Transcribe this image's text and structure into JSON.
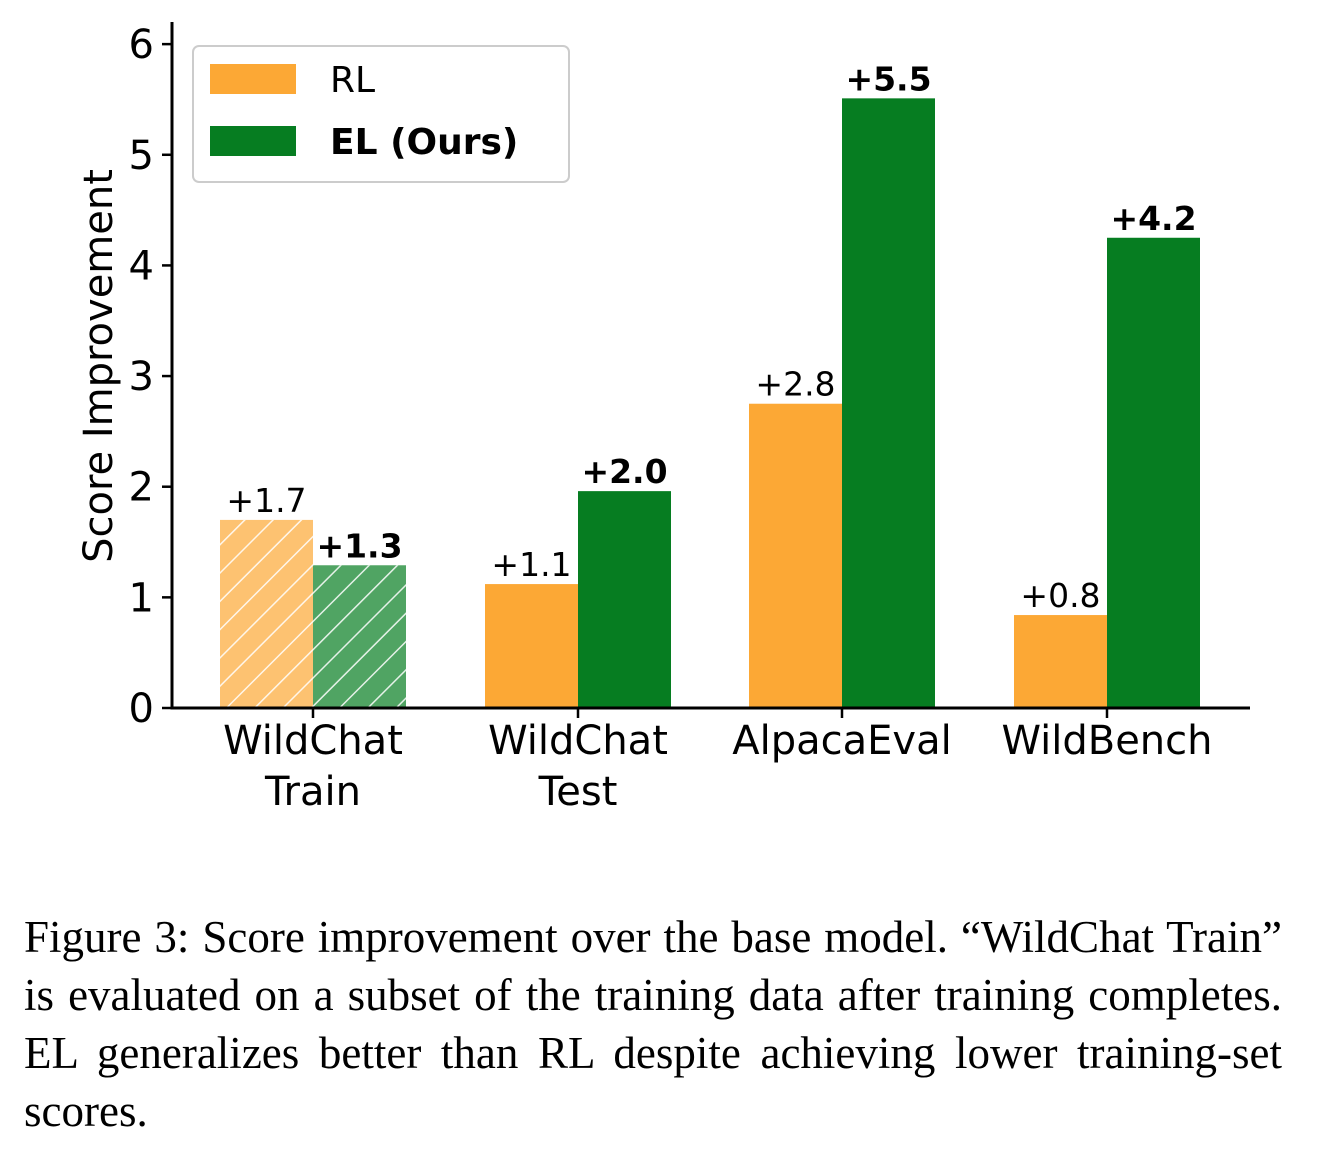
{
  "chart_data": {
    "type": "bar",
    "ylabel": "Score Improvement",
    "xlabel": "",
    "ylim": [
      0,
      6.2
    ],
    "yticks": [
      0,
      1,
      2,
      3,
      4,
      5,
      6
    ],
    "categories": [
      [
        "WildChat",
        "Train"
      ],
      [
        "WildChat",
        "Test"
      ],
      [
        "AlpacaEval"
      ],
      [
        "WildBench"
      ]
    ],
    "series": [
      {
        "name": "RL",
        "color": "#fca835",
        "values": [
          1.7,
          1.12,
          2.75,
          0.84
        ],
        "labels": [
          "+1.7",
          "+1.1",
          "+2.8",
          "+0.8"
        ],
        "label_weight": "normal"
      },
      {
        "name": "EL (Ours)",
        "color": "#067d21",
        "values": [
          1.29,
          1.96,
          5.51,
          4.25
        ],
        "labels": [
          "+1.3",
          "+2.0",
          "+5.5",
          "+4.2"
        ],
        "label_weight": "bold"
      }
    ],
    "hatched_categories": [
      0
    ],
    "legend_position": "upper-left",
    "grid": false
  },
  "caption": "Figure 3: Score improvement over the base model. “WildChat Train” is evaluated on a subset of the training data after training completes. EL generalizes better than RL despite achieving lower training-set scores."
}
